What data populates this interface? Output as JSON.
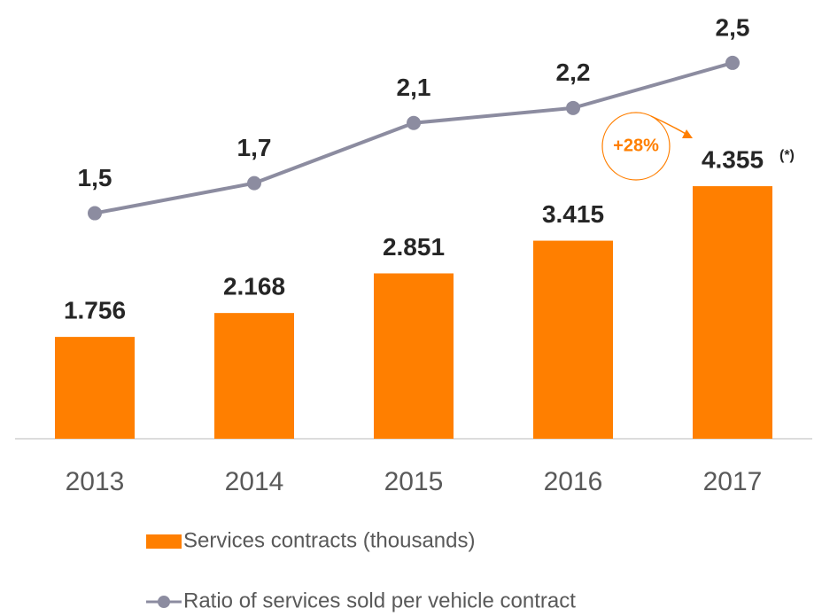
{
  "chart_data": {
    "type": "bar",
    "categories": [
      "2013",
      "2014",
      "2015",
      "2016",
      "2017"
    ],
    "series": [
      {
        "name": "Services contracts (thousands)",
        "type": "bar",
        "color": "#ff7f00",
        "values": [
          1756,
          2168,
          2851,
          3415,
          4355
        ],
        "value_labels": [
          "1.756",
          "2.168",
          "2.851",
          "3.415",
          "4.355"
        ]
      },
      {
        "name": "Ratio of services sold per vehicle contract",
        "type": "line",
        "axis": "y2",
        "color": "#8c8ca0",
        "values": [
          1.5,
          1.7,
          2.1,
          2.2,
          2.5
        ],
        "value_labels": [
          "1,5",
          "1,7",
          "2,1",
          "2,2",
          "2,5"
        ]
      }
    ],
    "ylim": [
      0,
      7000
    ],
    "y2lim": [
      0,
      2.7
    ],
    "annotations": [
      "+28%",
      "(*)"
    ]
  }
}
